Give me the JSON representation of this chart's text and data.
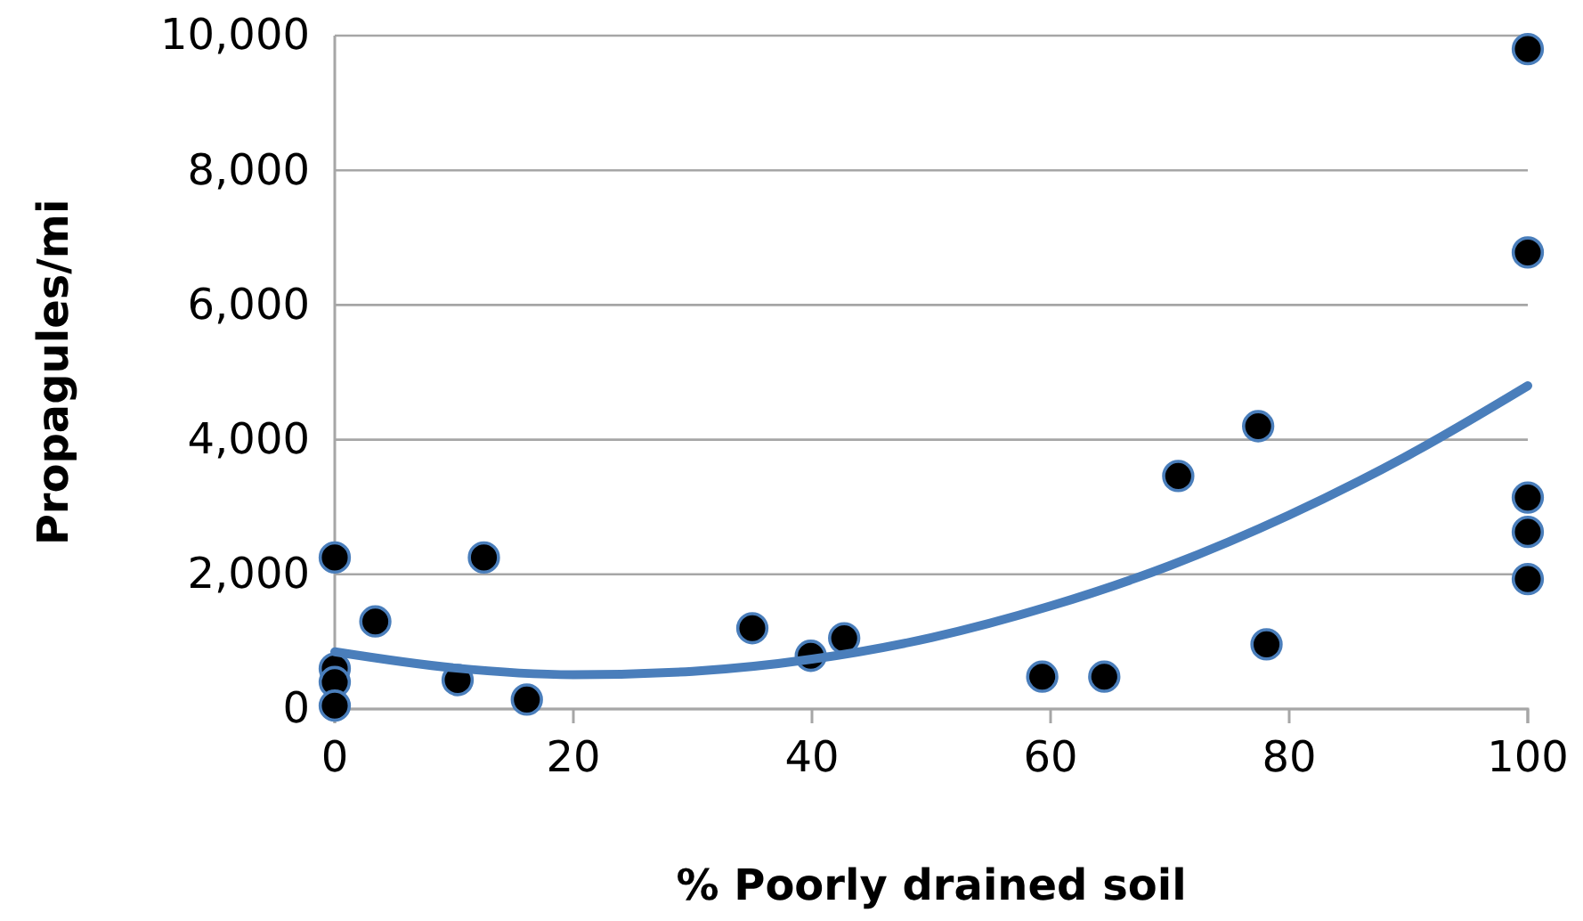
{
  "chart_data": {
    "type": "scatter",
    "xlabel": "% Poorly drained soil",
    "ylabel": "Propagules/mi",
    "xlim": [
      0,
      100
    ],
    "xticks": [
      0,
      20,
      40,
      60,
      80,
      100
    ],
    "ylim": [
      0,
      10000
    ],
    "yticks": [
      0,
      {
        "value": 2000,
        "label": "2,000"
      },
      {
        "value": 4000,
        "label": "4,000"
      },
      {
        "value": 6000,
        "label": "6,000"
      },
      {
        "value": 8000,
        "label": "8,000"
      },
      {
        "value": 10000,
        "label": "10,000"
      }
    ],
    "grid": "y",
    "marker": "circle",
    "series": [
      {
        "color": "#000000",
        "x": [
          0,
          0,
          0,
          0,
          3.4,
          12.5,
          10.3,
          16.1,
          35,
          39.9,
          42.7,
          59.3,
          64.5,
          70.7,
          77.4,
          78.1,
          100,
          100,
          100,
          100,
          100
        ],
        "values": [
          2250,
          600,
          400,
          50,
          1300,
          2250,
          430,
          140,
          1200,
          790,
          1050,
          480,
          480,
          3460,
          4200,
          960,
          9800,
          6780,
          3140,
          2630,
          1930
        ]
      },
      {
        "type": "line",
        "color": "#4a7ebb",
        "marker": "none",
        "x": [
          0,
          10,
          20,
          30,
          40,
          50,
          60,
          70,
          80,
          90,
          100
        ],
        "values": [
          850,
          610,
          510,
          560,
          740,
          1060,
          1530,
          2130,
          2880,
          3770,
          4800
        ]
      }
    ]
  }
}
